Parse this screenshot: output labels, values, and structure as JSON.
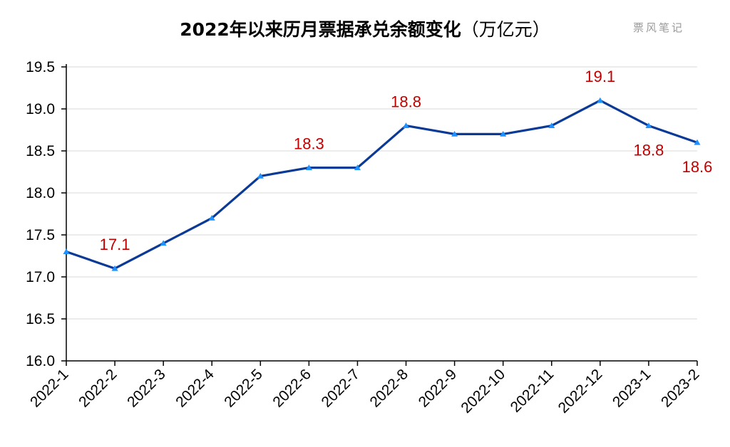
{
  "title_main": "2022年以来历月票据承兑余额变化",
  "title_unit": "（万亿元）",
  "watermark": "票风笔记",
  "chart_data": {
    "type": "line",
    "title": "2022年以来历月票据承兑余额变化（万亿元）",
    "xlabel": "",
    "ylabel": "",
    "categories": [
      "2022-1",
      "2022-2",
      "2022-3",
      "2022-4",
      "2022-5",
      "2022-6",
      "2022-7",
      "2022-8",
      "2022-9",
      "2022-10",
      "2022-11",
      "2022-12",
      "2023-1",
      "2023-2"
    ],
    "series": [
      {
        "values": [
          17.3,
          17.1,
          17.4,
          17.7,
          18.2,
          18.3,
          18.3,
          18.8,
          18.7,
          18.7,
          18.8,
          19.1,
          18.8,
          18.6
        ]
      }
    ],
    "data_labels": [
      {
        "index": 1,
        "text": "17.1",
        "position": "above"
      },
      {
        "index": 5,
        "text": "18.3",
        "position": "above"
      },
      {
        "index": 7,
        "text": "18.8",
        "position": "above"
      },
      {
        "index": 11,
        "text": "19.1",
        "position": "above"
      },
      {
        "index": 12,
        "text": "18.8",
        "position": "below"
      },
      {
        "index": 13,
        "text": "18.6",
        "position": "below"
      }
    ],
    "yticks": [
      "16.0",
      "16.5",
      "17.0",
      "17.5",
      "18.0",
      "18.5",
      "19.0",
      "19.5"
    ],
    "ylim": [
      16.0,
      19.5
    ],
    "grid": "horizontal",
    "legend": "none",
    "colors": {
      "line": "#0b3a96",
      "marker": "#1e90ff",
      "label": "#c00000",
      "grid": "#d9d9d9"
    }
  }
}
